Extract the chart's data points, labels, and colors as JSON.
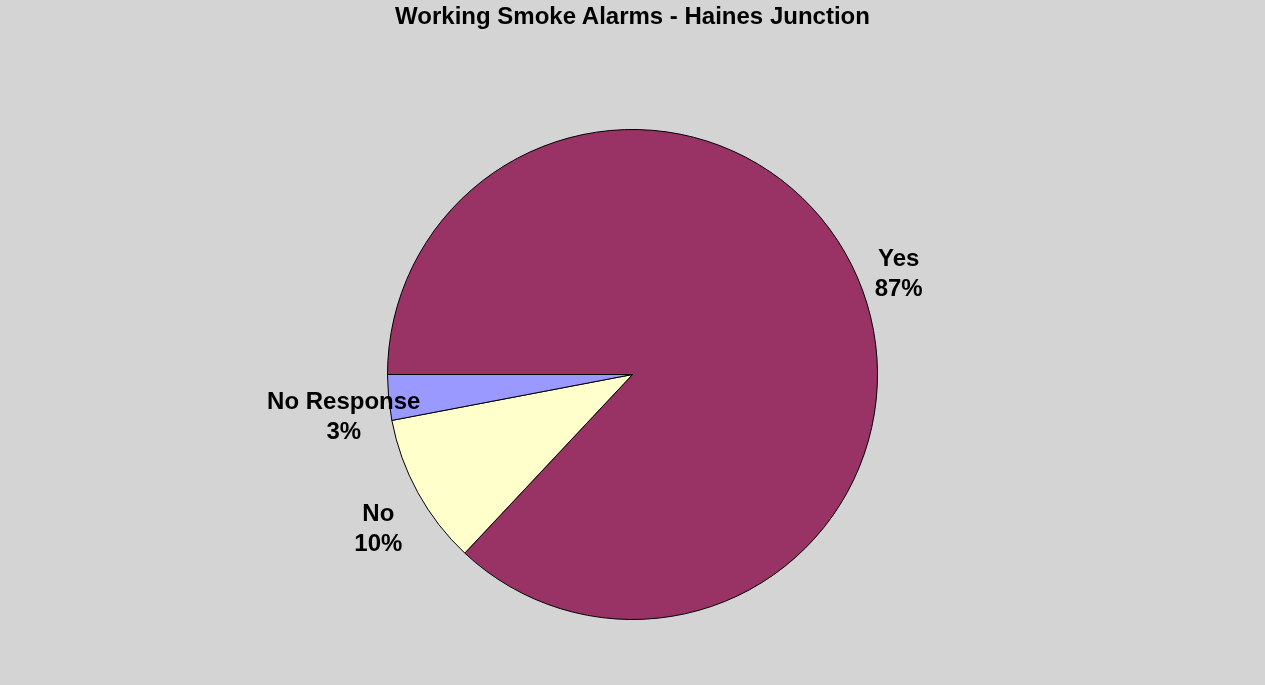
{
  "chart_data": {
    "type": "pie",
    "title": "Working Smoke Alarms - Haines Junction",
    "categories": [
      "Yes",
      "No",
      "No Response"
    ],
    "values": [
      87,
      10,
      3
    ],
    "value_labels": [
      "87%",
      "10%",
      "3%"
    ],
    "colors": [
      "#993366",
      "#ffffcc",
      "#9999ff"
    ],
    "legend": false
  }
}
